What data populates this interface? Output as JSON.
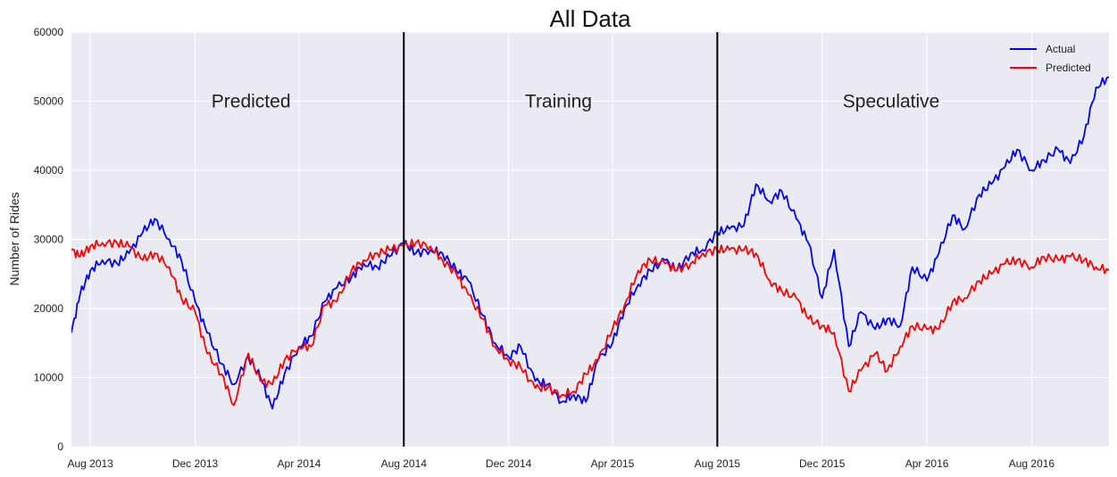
{
  "chart_data": {
    "type": "line",
    "title": "All Data",
    "xlabel": "",
    "ylabel": "Number of Rides",
    "ylim": [
      0,
      60000
    ],
    "yticks": [
      0,
      10000,
      20000,
      30000,
      40000,
      50000,
      60000
    ],
    "xlim": [
      "2013-07-10",
      "2016-10-30"
    ],
    "xticks": [
      {
        "date": "2013-08-01",
        "label": "Aug 2013"
      },
      {
        "date": "2013-12-01",
        "label": "Dec 2013"
      },
      {
        "date": "2014-04-01",
        "label": "Apr 2014"
      },
      {
        "date": "2014-08-01",
        "label": "Aug 2014"
      },
      {
        "date": "2014-12-01",
        "label": "Dec 2014"
      },
      {
        "date": "2015-04-01",
        "label": "Apr 2015"
      },
      {
        "date": "2015-08-01",
        "label": "Aug 2015"
      },
      {
        "date": "2015-12-01",
        "label": "Dec 2015"
      },
      {
        "date": "2016-04-01",
        "label": "Apr 2016"
      },
      {
        "date": "2016-08-01",
        "label": "Aug 2016"
      }
    ],
    "grid": true,
    "legend_position": "top-right",
    "dividers": [
      "2014-08-01",
      "2015-08-01"
    ],
    "annotations": [
      {
        "text": "Predicted",
        "date": "2013-12-20",
        "y": 50000
      },
      {
        "text": "Training",
        "date": "2014-12-20",
        "y": 50000
      },
      {
        "text": "Speculative",
        "date": "2015-12-25",
        "y": 50000
      }
    ],
    "series": [
      {
        "name": "Actual",
        "color": "#0000ff",
        "points": [
          [
            "2013-07-10",
            16500
          ],
          [
            "2013-07-20",
            22000
          ],
          [
            "2013-08-01",
            25500
          ],
          [
            "2013-08-15",
            27000
          ],
          [
            "2013-09-01",
            26500
          ],
          [
            "2013-09-15",
            28000
          ],
          [
            "2013-10-01",
            31000
          ],
          [
            "2013-10-15",
            33000
          ],
          [
            "2013-11-01",
            30000
          ],
          [
            "2013-11-15",
            27000
          ],
          [
            "2013-12-01",
            21000
          ],
          [
            "2013-12-15",
            16500
          ],
          [
            "2014-01-01",
            12000
          ],
          [
            "2014-01-15",
            9000
          ],
          [
            "2014-02-01",
            13000
          ],
          [
            "2014-02-15",
            10000
          ],
          [
            "2014-03-01",
            5500
          ],
          [
            "2014-03-15",
            10500
          ],
          [
            "2014-04-01",
            14500
          ],
          [
            "2014-04-15",
            16000
          ],
          [
            "2014-05-01",
            21000
          ],
          [
            "2014-05-15",
            23000
          ],
          [
            "2014-06-01",
            24500
          ],
          [
            "2014-06-15",
            26500
          ],
          [
            "2014-07-01",
            26000
          ],
          [
            "2014-07-15",
            27500
          ],
          [
            "2014-08-01",
            29500
          ],
          [
            "2014-08-15",
            28000
          ],
          [
            "2014-09-01",
            28500
          ],
          [
            "2014-09-15",
            28000
          ],
          [
            "2014-10-01",
            25500
          ],
          [
            "2014-10-15",
            24000
          ],
          [
            "2014-11-01",
            19000
          ],
          [
            "2014-11-15",
            15000
          ],
          [
            "2014-12-01",
            13000
          ],
          [
            "2014-12-15",
            14500
          ],
          [
            "2015-01-01",
            9500
          ],
          [
            "2015-01-15",
            9000
          ],
          [
            "2015-02-01",
            6500
          ],
          [
            "2015-02-15",
            7500
          ],
          [
            "2015-03-01",
            6500
          ],
          [
            "2015-03-15",
            12500
          ],
          [
            "2015-04-01",
            15000
          ],
          [
            "2015-04-15",
            20000
          ],
          [
            "2015-05-01",
            23500
          ],
          [
            "2015-05-15",
            25500
          ],
          [
            "2015-06-01",
            27000
          ],
          [
            "2015-06-15",
            25500
          ],
          [
            "2015-07-01",
            28000
          ],
          [
            "2015-07-15",
            28500
          ],
          [
            "2015-08-01",
            31000
          ],
          [
            "2015-08-15",
            31500
          ],
          [
            "2015-09-01",
            32000
          ],
          [
            "2015-09-15",
            38000
          ],
          [
            "2015-10-01",
            35500
          ],
          [
            "2015-10-15",
            37000
          ],
          [
            "2015-11-01",
            33000
          ],
          [
            "2015-11-15",
            29500
          ],
          [
            "2015-12-01",
            21500
          ],
          [
            "2015-12-15",
            28500
          ],
          [
            "2016-01-01",
            14500
          ],
          [
            "2016-01-15",
            19500
          ],
          [
            "2016-02-01",
            17000
          ],
          [
            "2016-02-15",
            18500
          ],
          [
            "2016-03-01",
            17500
          ],
          [
            "2016-03-15",
            26000
          ],
          [
            "2016-04-01",
            24000
          ],
          [
            "2016-04-15",
            28000
          ],
          [
            "2016-05-01",
            33500
          ],
          [
            "2016-05-15",
            31500
          ],
          [
            "2016-06-01",
            36500
          ],
          [
            "2016-06-15",
            38000
          ],
          [
            "2016-07-01",
            40500
          ],
          [
            "2016-07-15",
            43000
          ],
          [
            "2016-08-01",
            40000
          ],
          [
            "2016-08-15",
            41500
          ],
          [
            "2016-09-01",
            43000
          ],
          [
            "2016-09-15",
            41000
          ],
          [
            "2016-10-01",
            45000
          ],
          [
            "2016-10-15",
            52000
          ],
          [
            "2016-10-30",
            53500
          ]
        ]
      },
      {
        "name": "Predicted",
        "color": "#ff0000",
        "points": [
          [
            "2013-07-10",
            28500
          ],
          [
            "2013-07-20",
            27500
          ],
          [
            "2013-08-01",
            29000
          ],
          [
            "2013-08-15",
            29500
          ],
          [
            "2013-09-01",
            29500
          ],
          [
            "2013-09-15",
            29000
          ],
          [
            "2013-10-01",
            27000
          ],
          [
            "2013-10-15",
            28000
          ],
          [
            "2013-11-01",
            26000
          ],
          [
            "2013-11-15",
            21500
          ],
          [
            "2013-12-01",
            19500
          ],
          [
            "2013-12-15",
            13500
          ],
          [
            "2014-01-01",
            10500
          ],
          [
            "2014-01-15",
            6000
          ],
          [
            "2014-02-01",
            13500
          ],
          [
            "2014-02-15",
            9500
          ],
          [
            "2014-03-01",
            9000
          ],
          [
            "2014-03-15",
            12500
          ],
          [
            "2014-04-01",
            14500
          ],
          [
            "2014-04-15",
            14500
          ],
          [
            "2014-05-01",
            20500
          ],
          [
            "2014-05-15",
            21000
          ],
          [
            "2014-06-01",
            25500
          ],
          [
            "2014-06-15",
            27000
          ],
          [
            "2014-07-01",
            28000
          ],
          [
            "2014-07-15",
            28500
          ],
          [
            "2014-08-01",
            29000
          ],
          [
            "2014-08-15",
            29500
          ],
          [
            "2014-09-01",
            29000
          ],
          [
            "2014-09-15",
            27000
          ],
          [
            "2014-10-01",
            25000
          ],
          [
            "2014-10-15",
            22000
          ],
          [
            "2014-11-01",
            18500
          ],
          [
            "2014-11-15",
            14500
          ],
          [
            "2014-12-01",
            12500
          ],
          [
            "2014-12-15",
            11500
          ],
          [
            "2015-01-01",
            8500
          ],
          [
            "2015-01-15",
            8500
          ],
          [
            "2015-02-01",
            7500
          ],
          [
            "2015-02-15",
            8000
          ],
          [
            "2015-03-01",
            10500
          ],
          [
            "2015-03-15",
            12500
          ],
          [
            "2015-04-01",
            17000
          ],
          [
            "2015-04-15",
            20500
          ],
          [
            "2015-05-01",
            25500
          ],
          [
            "2015-05-15",
            27000
          ],
          [
            "2015-06-01",
            26500
          ],
          [
            "2015-06-15",
            25500
          ],
          [
            "2015-07-01",
            26500
          ],
          [
            "2015-07-15",
            28000
          ],
          [
            "2015-08-01",
            28500
          ],
          [
            "2015-08-15",
            28500
          ],
          [
            "2015-09-01",
            28500
          ],
          [
            "2015-09-15",
            28000
          ],
          [
            "2015-10-01",
            24000
          ],
          [
            "2015-10-15",
            22500
          ],
          [
            "2015-11-01",
            21500
          ],
          [
            "2015-11-15",
            18500
          ],
          [
            "2015-12-01",
            17500
          ],
          [
            "2015-12-15",
            16500
          ],
          [
            "2016-01-01",
            8000
          ],
          [
            "2016-01-15",
            11000
          ],
          [
            "2016-02-01",
            13500
          ],
          [
            "2016-02-15",
            11000
          ],
          [
            "2016-03-01",
            14500
          ],
          [
            "2016-03-15",
            17500
          ],
          [
            "2016-04-01",
            17000
          ],
          [
            "2016-04-15",
            17000
          ],
          [
            "2016-05-01",
            21000
          ],
          [
            "2016-05-15",
            21500
          ],
          [
            "2016-06-01",
            24000
          ],
          [
            "2016-06-15",
            25000
          ],
          [
            "2016-07-01",
            26500
          ],
          [
            "2016-07-15",
            27000
          ],
          [
            "2016-08-01",
            26000
          ],
          [
            "2016-08-15",
            27500
          ],
          [
            "2016-09-01",
            27000
          ],
          [
            "2016-09-15",
            27500
          ],
          [
            "2016-10-01",
            27000
          ],
          [
            "2016-10-15",
            26000
          ],
          [
            "2016-10-30",
            25500
          ]
        ]
      }
    ]
  }
}
